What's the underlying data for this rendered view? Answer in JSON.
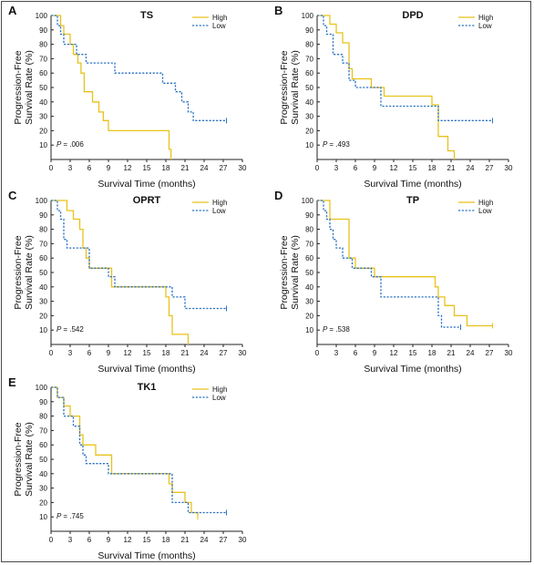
{
  "colors": {
    "high": "#e8c21a",
    "low": "#2a72c4",
    "axis": "#222222",
    "frame": "#4a4a4a"
  },
  "chart_data": [
    {
      "type": "line",
      "letter": "A",
      "title": "TS",
      "xlabel": "Survival Time (months)",
      "ylabel_lines": [
        "Progression-Free",
        "Survival Rate (%)"
      ],
      "xlim": [
        0,
        30
      ],
      "ylim": [
        0,
        100
      ],
      "xticks": [
        0,
        3,
        6,
        9,
        12,
        15,
        18,
        21,
        24,
        27,
        30
      ],
      "yticks": [
        10,
        20,
        30,
        40,
        50,
        60,
        70,
        80,
        90,
        100
      ],
      "p_prefix": "P",
      "p_value": "= .006",
      "legend": [
        "High",
        "Low"
      ],
      "series": [
        {
          "name": "High",
          "x": [
            0,
            1.5,
            2.0,
            3.0,
            3.5,
            4.2,
            4.7,
            5.2,
            6.5,
            7.5,
            8.2,
            9.0,
            18.5,
            18.8
          ],
          "y": [
            100,
            93,
            87,
            80,
            73,
            67,
            60,
            47,
            40,
            33,
            27,
            20,
            7,
            0
          ]
        },
        {
          "name": "Low",
          "x": [
            0,
            1.0,
            1.5,
            2.0,
            4.0,
            5.5,
            10.0,
            17.5,
            19.5,
            20.5,
            21.5,
            22.3,
            27.5
          ],
          "y": [
            100,
            93,
            87,
            80,
            73,
            67,
            60,
            53,
            47,
            40,
            33,
            27,
            27
          ]
        }
      ]
    },
    {
      "type": "line",
      "letter": "B",
      "title": "DPD",
      "xlabel": "Survival Time (months)",
      "ylabel_lines": [
        "Progression-Free",
        "Survival Rate (%)"
      ],
      "xlim": [
        0,
        30
      ],
      "ylim": [
        0,
        100
      ],
      "xticks": [
        0,
        3,
        6,
        9,
        12,
        15,
        18,
        21,
        24,
        27,
        30
      ],
      "yticks": [
        10,
        20,
        30,
        40,
        50,
        60,
        70,
        80,
        90,
        100
      ],
      "p_prefix": "P",
      "p_value": "= .493",
      "legend": [
        "High",
        "Low"
      ],
      "series": [
        {
          "name": "High",
          "x": [
            0,
            2.0,
            3.0,
            4.0,
            5.0,
            5.5,
            8.5,
            10.5,
            18.0,
            19.0,
            20.5,
            21.5
          ],
          "y": [
            100,
            94,
            88,
            81,
            63,
            56,
            50,
            44,
            38,
            16,
            6,
            0
          ]
        },
        {
          "name": "Low",
          "x": [
            0,
            1.0,
            1.5,
            2.5,
            4.0,
            5.0,
            6.0,
            10.0,
            19.0,
            27.5
          ],
          "y": [
            100,
            93,
            87,
            73,
            67,
            55,
            50,
            37,
            27,
            27
          ]
        }
      ]
    },
    {
      "type": "line",
      "letter": "C",
      "title": "OPRT",
      "xlabel": "Survival Time (months)",
      "ylabel_lines": [
        "Progression-Free",
        "Survival Rate (%)"
      ],
      "xlim": [
        0,
        30
      ],
      "ylim": [
        0,
        100
      ],
      "xticks": [
        0,
        3,
        6,
        9,
        12,
        15,
        18,
        21,
        24,
        27,
        30
      ],
      "yticks": [
        10,
        20,
        30,
        40,
        50,
        60,
        70,
        80,
        90,
        100
      ],
      "p_prefix": "P",
      "p_value": "= .542",
      "legend": [
        "High",
        "Low"
      ],
      "series": [
        {
          "name": "High",
          "x": [
            0,
            2.5,
            3.5,
            4.5,
            5.0,
            5.5,
            6.0,
            9.5,
            18.0,
            18.5,
            19.0,
            21.0,
            21.5
          ],
          "y": [
            100,
            93,
            87,
            80,
            67,
            60,
            53,
            40,
            33,
            20,
            7,
            7,
            0
          ]
        },
        {
          "name": "Low",
          "x": [
            0,
            1.0,
            1.5,
            2.0,
            2.5,
            6.0,
            9.0,
            10.0,
            19.0,
            21.0,
            27.5
          ],
          "y": [
            100,
            93,
            87,
            73,
            67,
            53,
            47,
            40,
            33,
            25,
            25
          ]
        }
      ]
    },
    {
      "type": "line",
      "letter": "D",
      "title": "TP",
      "xlabel": "Survival Time (months)",
      "ylabel_lines": [
        "Progression-Free",
        "Survival Rate (%)"
      ],
      "xlim": [
        0,
        30
      ],
      "ylim": [
        0,
        100
      ],
      "xticks": [
        0,
        3,
        6,
        9,
        12,
        15,
        18,
        21,
        24,
        27,
        30
      ],
      "yticks": [
        10,
        20,
        30,
        40,
        50,
        60,
        70,
        80,
        90,
        100
      ],
      "p_prefix": "P",
      "p_value": "= .538",
      "legend": [
        "High",
        "Low"
      ],
      "series": [
        {
          "name": "High",
          "x": [
            0,
            2.0,
            3.0,
            5.0,
            6.0,
            9.0,
            18.5,
            19.0,
            20.0,
            21.5,
            23.5,
            27.5
          ],
          "y": [
            100,
            87,
            87,
            60,
            53,
            47,
            40,
            33,
            27,
            20,
            13,
            13
          ]
        },
        {
          "name": "Low",
          "x": [
            0,
            1.0,
            1.5,
            2.0,
            2.5,
            3.0,
            4.0,
            5.5,
            8.5,
            10.0,
            19.0,
            19.5,
            22.5
          ],
          "y": [
            100,
            93,
            87,
            80,
            73,
            67,
            60,
            53,
            47,
            33,
            20,
            12,
            12
          ]
        }
      ]
    },
    {
      "type": "line",
      "letter": "E",
      "title": "TK1",
      "xlabel": "Survival Time (months)",
      "ylabel_lines": [
        "Progression-Free",
        "Survival Rate (%)"
      ],
      "xlim": [
        0,
        30
      ],
      "ylim": [
        0,
        100
      ],
      "xticks": [
        0,
        3,
        6,
        9,
        12,
        15,
        18,
        21,
        24,
        27,
        30
      ],
      "yticks": [
        10,
        20,
        30,
        40,
        50,
        60,
        70,
        80,
        90,
        100
      ],
      "p_prefix": "P",
      "p_value": "= .745",
      "legend": [
        "High",
        "Low"
      ],
      "series": [
        {
          "name": "High",
          "x": [
            0,
            1.0,
            2.0,
            3.0,
            4.5,
            5.0,
            7.0,
            9.5,
            18.5,
            19.0,
            21.0,
            22.0,
            23.0
          ],
          "y": [
            100,
            93,
            87,
            80,
            67,
            60,
            53,
            40,
            33,
            27,
            20,
            13,
            10
          ]
        },
        {
          "name": "Low",
          "x": [
            0,
            1.0,
            2.0,
            3.5,
            4.5,
            5.0,
            5.5,
            9.0,
            18.0,
            19.0,
            21.5,
            27.5
          ],
          "y": [
            100,
            93,
            80,
            73,
            60,
            53,
            47,
            40,
            40,
            20,
            13,
            13
          ]
        }
      ]
    }
  ]
}
